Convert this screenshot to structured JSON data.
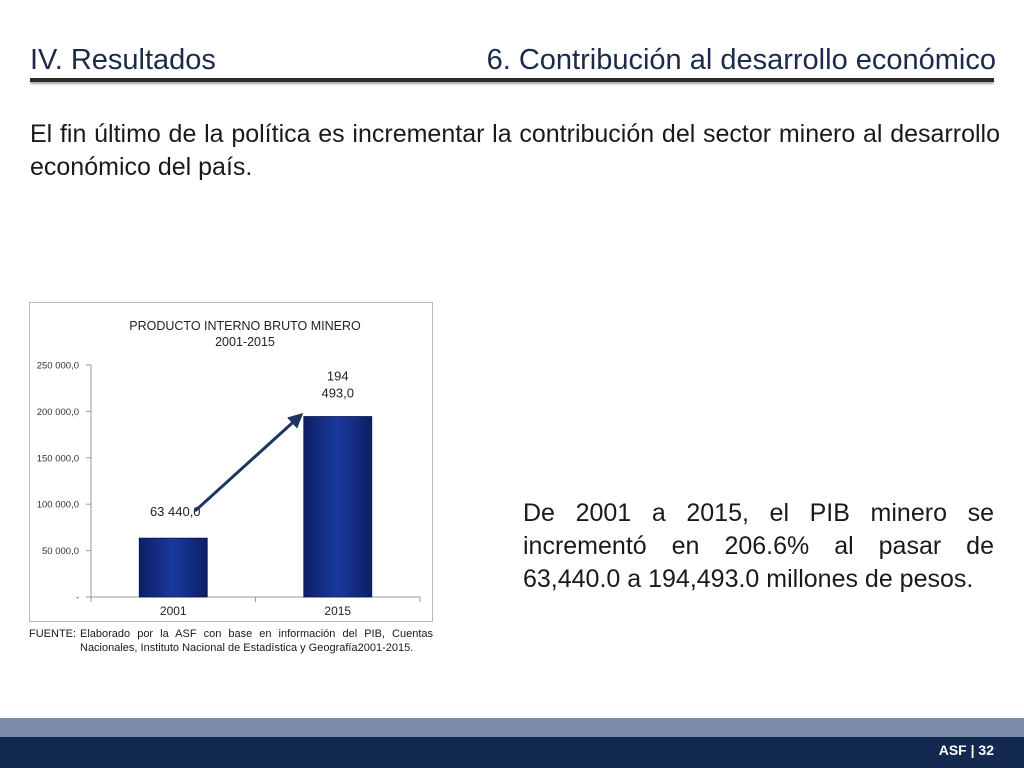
{
  "header": {
    "section": "IV. Resultados",
    "title": "6. Contribución al desarrollo económico"
  },
  "intro_text": "El fin último de la política es incrementar la contribución del sector minero al desarrollo económico del país.",
  "summary_text": "De 2001 a 2015, el PIB minero se incrementó en 206.6% al pasar de 63,440.0 a 194,493.0 millones de pesos.",
  "source": {
    "label": "FUENTE:",
    "text": "Elaborado por la ASF con base en información del PIB, Cuentas Nacionales, Instituto Nacional de Estadística y Geografía2001-2015."
  },
  "footer": {
    "label": "ASF | 32"
  },
  "colors": {
    "bar": "#1a3aa0",
    "bar_dark": "#0d1e63",
    "arrow": "#1f3560",
    "band_light": "#7b8aa6",
    "band_dark": "#13294f"
  },
  "chart_data": {
    "type": "bar",
    "title": "PRODUCTO INTERNO BRUTO MINERO",
    "subtitle": "2001-2015",
    "categories": [
      "2001",
      "2015"
    ],
    "values": [
      63440.0,
      194493.0
    ],
    "data_labels": [
      "63 440,0",
      "194 493,0"
    ],
    "ylim": [
      0,
      250000
    ],
    "yticks": [
      0,
      50000,
      100000,
      150000,
      200000,
      250000
    ],
    "ytick_labels": [
      "-",
      "50 000,0",
      "100 000,0",
      "150 000,0",
      "200 000,0",
      "250 000,0"
    ],
    "grid": false,
    "legend": "none",
    "trend_arrow": true
  }
}
